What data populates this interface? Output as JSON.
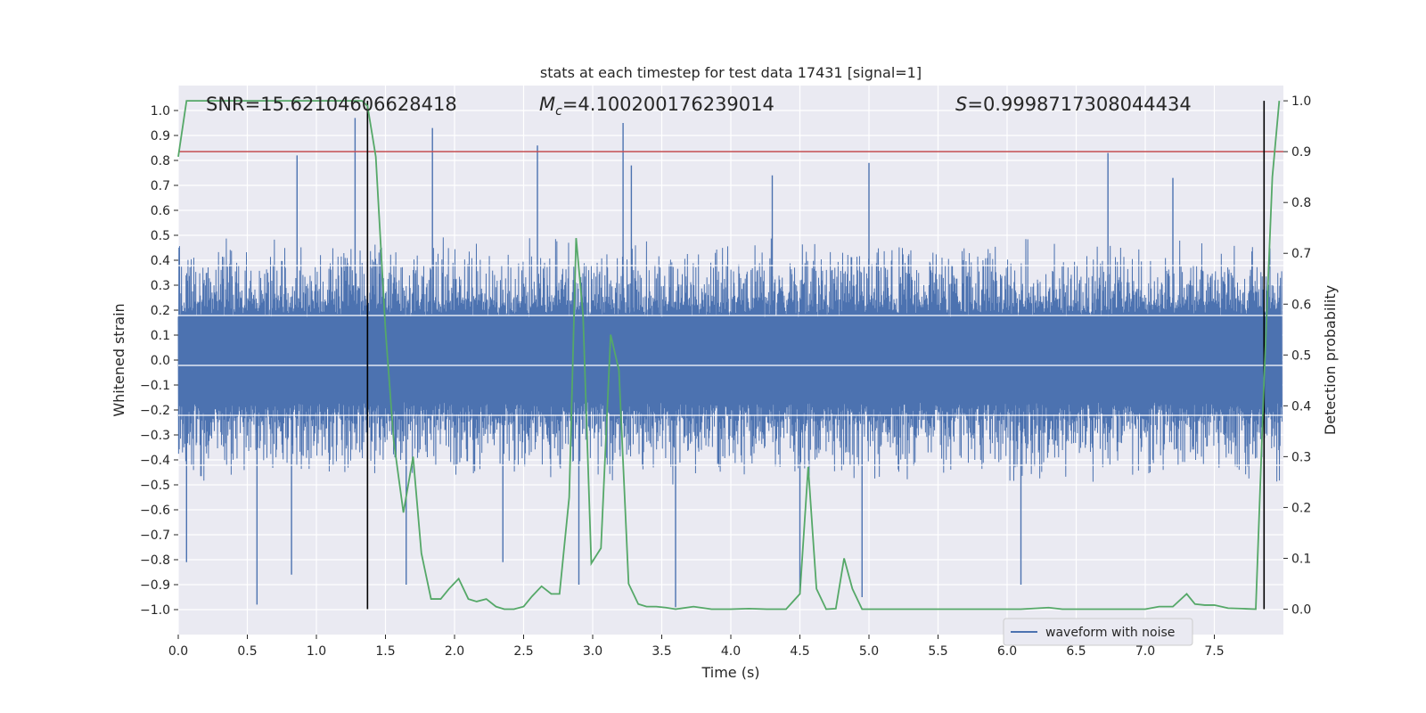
{
  "chart_data": {
    "type": "line",
    "title": "stats at each timestep for test data 17431 [signal=1]",
    "xlabel": "Time (s)",
    "ylabel": "Whitened strain",
    "ylabel_right": "Detection probability",
    "xlim": [
      0.0,
      8.0
    ],
    "ylim": [
      -1.1,
      1.1
    ],
    "ylim_right": [
      -0.05,
      1.03
    ],
    "x_ticks": [
      0.0,
      0.5,
      1.0,
      1.5,
      2.0,
      2.5,
      3.0,
      3.5,
      4.0,
      4.5,
      5.0,
      5.5,
      6.0,
      6.5,
      7.0,
      7.5
    ],
    "y_ticks": [
      -1.0,
      -0.9,
      -0.8,
      -0.7,
      -0.6,
      -0.5,
      -0.4,
      -0.3,
      -0.2,
      -0.1,
      0.0,
      0.1,
      0.2,
      0.3,
      0.4,
      0.5,
      0.6,
      0.7,
      0.8,
      0.9,
      1.0
    ],
    "y_ticks_right": [
      0.0,
      0.1,
      0.2,
      0.3,
      0.4,
      0.5,
      0.6,
      0.7,
      0.8,
      0.9,
      1.0
    ],
    "annotations": {
      "snr": "SNR=15.62104606628418",
      "mc_value": "=4.100200176239014",
      "s_value": "=0.9998717308044434"
    },
    "legend": [
      "waveform with noise"
    ],
    "threshold": {
      "y": 0.78,
      "color": "#c44e52"
    },
    "vertical_lines": [
      1.37,
      7.86
    ],
    "waveform": {
      "name": "waveform with noise",
      "color": "#4c72b0",
      "envelope_typical": 0.44,
      "spikes": [
        {
          "t": 1.28,
          "y": 0.97
        },
        {
          "t": 1.84,
          "y": 0.93
        },
        {
          "t": 2.6,
          "y": 0.86
        },
        {
          "t": 3.22,
          "y": 0.95
        },
        {
          "t": 0.86,
          "y": 0.82
        },
        {
          "t": 6.73,
          "y": 0.83
        },
        {
          "t": 5.0,
          "y": 0.79
        },
        {
          "t": 0.57,
          "y": -0.98
        },
        {
          "t": 3.6,
          "y": -0.99
        },
        {
          "t": 0.06,
          "y": -0.81
        },
        {
          "t": 0.82,
          "y": -0.86
        },
        {
          "t": 1.65,
          "y": -0.9
        },
        {
          "t": 2.35,
          "y": -0.81
        },
        {
          "t": 4.5,
          "y": -0.93
        },
        {
          "t": 6.1,
          "y": -0.9
        },
        {
          "t": 3.28,
          "y": 0.78
        },
        {
          "t": 4.3,
          "y": 0.74
        },
        {
          "t": 7.2,
          "y": 0.73
        },
        {
          "t": 4.95,
          "y": -0.95
        },
        {
          "t": 2.9,
          "y": -0.9
        }
      ]
    },
    "probability": {
      "name": "detection probability",
      "color": "#55a868",
      "x": [
        0.0,
        0.06,
        0.13,
        0.2,
        0.26,
        0.33,
        0.4,
        0.46,
        0.53,
        0.6,
        0.66,
        0.73,
        0.8,
        0.86,
        0.93,
        1.0,
        1.06,
        1.13,
        1.2,
        1.26,
        1.33,
        1.37,
        1.43,
        1.5,
        1.56,
        1.63,
        1.7,
        1.76,
        1.83,
        1.9,
        1.96,
        2.03,
        2.1,
        2.16,
        2.23,
        2.3,
        2.36,
        2.43,
        2.5,
        2.56,
        2.63,
        2.7,
        2.76,
        2.83,
        2.88,
        2.93,
        2.99,
        3.06,
        3.13,
        3.19,
        3.26,
        3.33,
        3.39,
        3.46,
        3.53,
        3.6,
        3.73,
        3.86,
        4.0,
        4.13,
        4.26,
        4.4,
        4.5,
        4.56,
        4.62,
        4.69,
        4.76,
        4.82,
        4.88,
        4.95,
        5.02,
        5.15,
        5.3,
        5.5,
        5.7,
        5.9,
        6.1,
        6.3,
        6.4,
        6.5,
        6.6,
        6.8,
        7.0,
        7.1,
        7.2,
        7.3,
        7.36,
        7.43,
        7.5,
        7.6,
        7.7,
        7.8,
        7.86,
        7.92,
        7.97
      ],
      "y": [
        0.89,
        1.0,
        1.0,
        1.0,
        1.0,
        1.0,
        1.0,
        1.0,
        1.0,
        1.0,
        1.0,
        1.0,
        1.0,
        1.0,
        1.0,
        1.0,
        1.0,
        1.0,
        1.0,
        1.0,
        1.0,
        0.99,
        0.89,
        0.55,
        0.33,
        0.19,
        0.3,
        0.11,
        0.02,
        0.02,
        0.04,
        0.06,
        0.02,
        0.015,
        0.02,
        0.005,
        0.0,
        0.0,
        0.005,
        0.025,
        0.045,
        0.03,
        0.03,
        0.22,
        0.73,
        0.58,
        0.09,
        0.12,
        0.54,
        0.47,
        0.05,
        0.01,
        0.005,
        0.005,
        0.003,
        0.0,
        0.005,
        0.0,
        0.0,
        0.001,
        0.0,
        0.0,
        0.03,
        0.28,
        0.04,
        0.0,
        0.001,
        0.1,
        0.04,
        0.0,
        0.0,
        0.0,
        0.0,
        0.0,
        0.0,
        0.0,
        0.0,
        0.003,
        0.0,
        0.0,
        0.0,
        0.0,
        0.0,
        0.005,
        0.005,
        0.03,
        0.01,
        0.008,
        0.008,
        0.002,
        0.001,
        0.0,
        0.45,
        0.85,
        1.0
      ]
    }
  }
}
